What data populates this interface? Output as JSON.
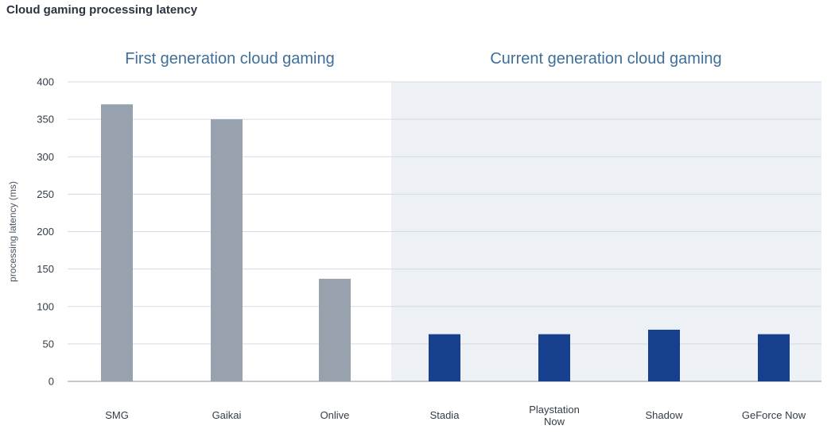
{
  "title": "Cloud gaming processing latency",
  "colors": {
    "first_gen_bar": "#98a2ae",
    "current_gen_bar": "#163f8d",
    "current_gen_background": "#edf1f5",
    "gridline": "#d5dae0"
  },
  "chart_data": {
    "type": "bar",
    "title": "Cloud gaming processing latency",
    "ylabel": "processing latency (ms)",
    "xlabel": "",
    "ylim": [
      0,
      400
    ],
    "yticks": [
      0,
      50,
      100,
      150,
      200,
      250,
      300,
      350,
      400
    ],
    "grid": true,
    "groups": [
      {
        "name": "First generation cloud gaming",
        "categories": [
          "SMG",
          "Gaikai",
          "Onlive"
        ],
        "values": [
          370,
          350,
          137
        ]
      },
      {
        "name": "Current generation cloud gaming",
        "categories": [
          "Stadia",
          "Playstation Now",
          "Shadow",
          "GeForce Now"
        ],
        "category_lines": [
          [
            "Stadia"
          ],
          [
            "Playstation",
            "Now"
          ],
          [
            "Shadow"
          ],
          [
            "GeForce Now"
          ]
        ],
        "values": [
          63,
          63,
          69,
          63
        ]
      }
    ]
  }
}
